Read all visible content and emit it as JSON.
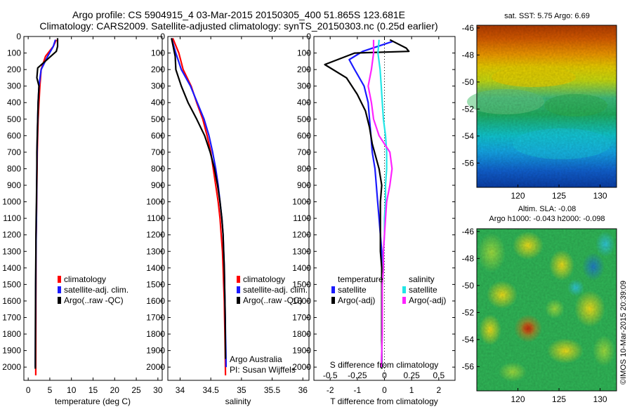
{
  "header": {
    "line1": "Argo profile: CS 5904915_4 03-Mar-2015 20150305_400 51.865S 123.681E",
    "line2": "Climatology: CARS2009. Satellite-adjusted climatology: synTS_20150303.nc (0.25d earlier)"
  },
  "colors": {
    "climatology": "#ff0000",
    "satellite": "#1a1aff",
    "argo": "#000000",
    "salinity_satellite": "#22e6e6",
    "salinity_argo": "#ff22ff"
  },
  "depth_ticks": [
    0,
    100,
    200,
    300,
    400,
    500,
    600,
    700,
    800,
    900,
    1000,
    1100,
    1200,
    1300,
    1400,
    1500,
    1600,
    1700,
    1800,
    1900,
    2000
  ],
  "legend": [
    "climatology",
    "satellite-adj. clim.",
    "Argo(..raw -QC)"
  ],
  "attribution": {
    "line1": "Argo Australia",
    "line2": "PI: Susan Wijffels"
  },
  "chart_data": [
    {
      "type": "line",
      "xlabel": "temperature (deg C)",
      "xlim": [
        -1,
        31
      ],
      "x_ticks": [
        0,
        5,
        10,
        15,
        20,
        25,
        30
      ],
      "ylim": [
        2080,
        0
      ],
      "series": [
        {
          "name": "climatology",
          "x": [
            6.5,
            5.8,
            4.0,
            3.0,
            2.7,
            2.5,
            2.3,
            2.2,
            2.1,
            2.05,
            2.0,
            1.95,
            1.9,
            1.85,
            1.8,
            1.8,
            1.8,
            1.78,
            1.77,
            1.76,
            1.75
          ],
          "y": [
            20,
            60,
            120,
            200,
            300,
            400,
            500,
            600,
            700,
            800,
            900,
            1000,
            1100,
            1200,
            1300,
            1400,
            1500,
            1600,
            1700,
            1800,
            2050
          ]
        },
        {
          "name": "satellite-adj. clim.",
          "x": [
            6.3,
            5.8,
            4.5,
            3.0,
            2.5,
            2.3,
            2.2,
            2.1,
            2.05,
            2.0,
            1.97,
            1.94,
            1.9,
            1.85,
            1.8,
            1.78,
            1.75,
            1.72,
            1.7,
            1.68,
            1.65
          ],
          "y": [
            20,
            60,
            120,
            200,
            300,
            400,
            500,
            600,
            700,
            800,
            900,
            1000,
            1100,
            1200,
            1300,
            1400,
            1500,
            1600,
            1700,
            1800,
            2000
          ]
        },
        {
          "name": "Argo(..raw -QC)",
          "x": [
            6.8,
            6.8,
            6.5,
            2.2,
            2.0,
            2.5,
            2.3,
            2.2,
            2.1,
            2.0,
            2.0,
            1.95,
            1.9,
            1.85,
            1.8,
            1.78,
            1.75,
            1.72,
            1.7,
            1.68,
            1.65
          ],
          "y": [
            10,
            60,
            90,
            190,
            250,
            300,
            400,
            500,
            600,
            700,
            800,
            900,
            1000,
            1100,
            1200,
            1300,
            1400,
            1500,
            1600,
            1700,
            2010
          ]
        }
      ]
    },
    {
      "type": "line",
      "xlabel": "salinity",
      "xlim": [
        33.8,
        36.1
      ],
      "x_ticks": [
        34,
        34.5,
        35,
        35.5,
        36
      ],
      "ylim": [
        2080,
        0
      ],
      "series": [
        {
          "name": "climatology",
          "x": [
            33.88,
            33.98,
            34.05,
            34.18,
            34.27,
            34.37,
            34.44,
            34.5,
            34.54,
            34.58,
            34.62,
            34.65,
            34.67,
            34.69,
            34.7,
            34.71,
            34.72,
            34.725,
            34.73,
            34.735,
            34.74
          ],
          "y": [
            10,
            100,
            200,
            300,
            400,
            500,
            600,
            700,
            800,
            900,
            1000,
            1100,
            1200,
            1300,
            1400,
            1500,
            1600,
            1700,
            1800,
            1900,
            2050
          ]
        },
        {
          "name": "satellite-adj. clim.",
          "x": [
            33.86,
            33.93,
            34.02,
            34.17,
            34.28,
            34.39,
            34.47,
            34.53,
            34.58,
            34.62,
            34.65,
            34.68,
            34.7,
            34.71,
            34.72,
            34.725,
            34.73,
            34.735,
            34.74,
            34.745,
            34.75
          ],
          "y": [
            10,
            100,
            200,
            300,
            400,
            500,
            600,
            700,
            800,
            900,
            1000,
            1100,
            1200,
            1300,
            1400,
            1500,
            1600,
            1700,
            1800,
            1900,
            2000
          ]
        },
        {
          "name": "Argo(..raw -QC)",
          "x": [
            33.86,
            33.92,
            33.93,
            34.02,
            34.13,
            34.27,
            34.4,
            34.49,
            34.56,
            34.61,
            34.65,
            34.68,
            34.7,
            34.71,
            34.72,
            34.725,
            34.73,
            34.735,
            34.74
          ],
          "y": [
            10,
            120,
            200,
            300,
            400,
            500,
            600,
            700,
            800,
            900,
            1000,
            1100,
            1200,
            1300,
            1400,
            1500,
            1600,
            1700,
            1950
          ]
        }
      ]
    },
    {
      "type": "line",
      "xlabel": "T difference from climatology",
      "x2label": "S difference from climatology",
      "xlim": [
        -2.6,
        2.6
      ],
      "x_ticks": [
        -2,
        -1,
        0,
        1,
        2
      ],
      "x2lim": [
        -0.65,
        0.65
      ],
      "x2_ticks": [
        -0.5,
        -0.25,
        0,
        0.25,
        0.5
      ],
      "x2_tick_labels": [
        "-0.5",
        "-0.25",
        "0",
        "0.25",
        "0.5"
      ],
      "ylim": [
        2080,
        0
      ],
      "legend_groups": {
        "temperature": [
          "satellite",
          "Argo(-adj)"
        ],
        "salinity": [
          "satellite",
          "Argo(-adj)"
        ]
      },
      "series": [
        {
          "name": "satellite",
          "group": "temperature",
          "x": [
            0.3,
            -0.8,
            -1.3,
            -1.1,
            -0.75,
            -0.6,
            -0.55,
            -0.5,
            -0.45,
            -0.35,
            -0.3,
            -0.25,
            -0.2,
            -0.15,
            -0.1,
            -0.1,
            -0.1,
            -0.1,
            -0.1,
            -0.1
          ],
          "y": [
            30,
            90,
            140,
            200,
            300,
            400,
            500,
            600,
            700,
            800,
            900,
            1000,
            1100,
            1200,
            1300,
            1400,
            1500,
            1600,
            1800,
            2000
          ]
        },
        {
          "name": "Argo(-adj)",
          "group": "temperature",
          "x": [
            0.2,
            0.8,
            0.9,
            -1.1,
            -2.2,
            -1.4,
            -1.0,
            -0.7,
            -0.55,
            -0.45,
            -0.2,
            -0.1,
            -0.15,
            -0.15,
            -0.15,
            -0.15,
            -0.1,
            -0.1,
            -0.1,
            -0.1,
            -0.1
          ],
          "y": [
            20,
            70,
            90,
            100,
            170,
            250,
            350,
            450,
            550,
            650,
            800,
            900,
            1000,
            1100,
            1200,
            1300,
            1400,
            1500,
            1600,
            1800,
            2010
          ]
        },
        {
          "name": "satellite",
          "group": "salinity",
          "x": [
            -0.05,
            -0.06,
            -0.04,
            -0.03,
            -0.02,
            -0.01,
            0.01,
            0.02,
            0.02,
            0.01,
            0.01,
            0.0,
            0.0,
            -0.01,
            -0.01,
            -0.02,
            -0.02,
            -0.02,
            -0.03
          ],
          "y": [
            20,
            100,
            200,
            300,
            400,
            500,
            600,
            700,
            800,
            900,
            1000,
            1100,
            1200,
            1300,
            1400,
            1500,
            1600,
            1800,
            2000
          ]
        },
        {
          "name": "Argo(-adj)",
          "group": "salinity",
          "x": [
            -0.1,
            -0.1,
            -0.12,
            -0.15,
            -0.12,
            -0.1,
            -0.05,
            0.05,
            0.07,
            0.05,
            0.02,
            0.01,
            0.0,
            -0.01,
            -0.01,
            -0.02,
            -0.02,
            -0.02,
            -0.03
          ],
          "y": [
            20,
            100,
            200,
            300,
            400,
            500,
            600,
            700,
            800,
            900,
            1000,
            1100,
            1200,
            1300,
            1400,
            1500,
            1600,
            1800,
            2000
          ]
        }
      ]
    },
    {
      "type": "heatmap",
      "title": "sat. SST: 5.75 Argo: 6.69",
      "xlim": [
        115,
        132
      ],
      "ylim": [
        -57.8,
        -45.8
      ],
      "x_ticks": [
        120,
        125,
        130
      ],
      "y_ticks": [
        -46,
        -48,
        -50,
        -52,
        -54,
        -56
      ],
      "colormap": "jet"
    },
    {
      "type": "heatmap",
      "title": "Altim. SLA: -0.08",
      "subtitle": "Argo h1000: -0.043 h2000: -0.098",
      "xlim": [
        115,
        132
      ],
      "ylim": [
        -57.8,
        -45.8
      ],
      "x_ticks": [
        120,
        125,
        130
      ],
      "y_ticks": [
        -46,
        -48,
        -50,
        -52,
        -54,
        -56
      ],
      "colormap": "jet"
    }
  ],
  "timestamp": "©IMOS 10-Mar-2015 20:39:09"
}
